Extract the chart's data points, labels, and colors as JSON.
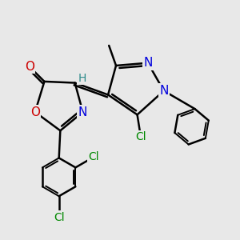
{
  "bg_color": "#e8e8e8",
  "bond_color": "#000000",
  "bond_width": 1.8,
  "atom_colors": {
    "O": "#cc0000",
    "N": "#0000dd",
    "Cl": "#008800",
    "H": "#2e8b8b",
    "C": "#000000"
  },
  "figsize": [
    3.0,
    3.0
  ],
  "dpi": 100
}
